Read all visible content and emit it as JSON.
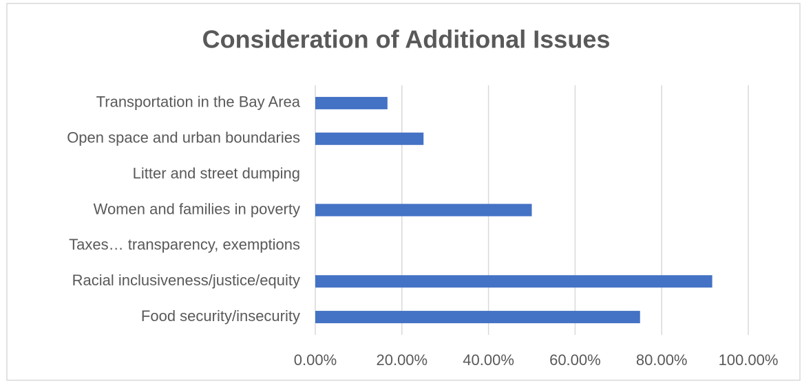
{
  "chart_data": {
    "type": "bar",
    "orientation": "horizontal",
    "title": "Consideration of Additional Issues",
    "categories": [
      "Transportation in the Bay Area",
      "Open space and urban boundaries",
      "Litter and street dumping",
      "Women and families in poverty",
      "Taxes… transparency, exemptions",
      "Racial inclusiveness/justice/equity",
      "Food security/insecurity"
    ],
    "values": [
      16.67,
      25,
      0,
      50,
      0,
      91.67,
      75
    ],
    "color": "#4472c4",
    "xlim": [
      0,
      100
    ],
    "xticks": [
      {
        "value": 0,
        "label": "0.00%"
      },
      {
        "value": 20,
        "label": "20.00%"
      },
      {
        "value": 40,
        "label": "40.00%"
      },
      {
        "value": 60,
        "label": "60.00%"
      },
      {
        "value": 80,
        "label": "80.00%"
      },
      {
        "value": 100,
        "label": "100.00%"
      }
    ],
    "grid": true
  }
}
